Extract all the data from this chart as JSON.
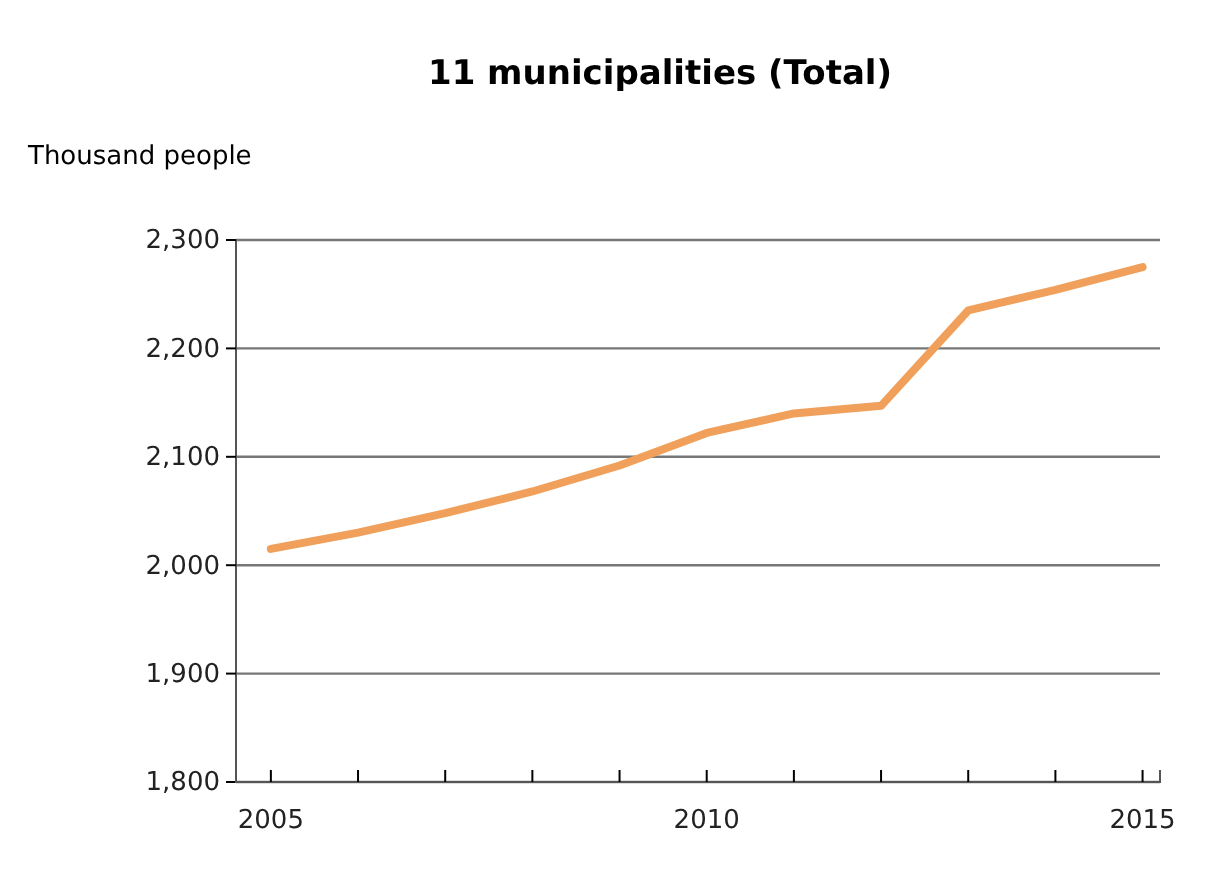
{
  "chart_data": {
    "type": "line",
    "title": "11 municipalities (Total)",
    "ylabel": "Thousand people",
    "x": [
      2005,
      2006,
      2007,
      2008,
      2009,
      2010,
      2011,
      2012,
      2013,
      2014,
      2015
    ],
    "series": [
      {
        "color": "#f0a05a",
        "values": [
          2015,
          2030,
          2048,
          2068,
          2092,
          2122,
          2140,
          2147,
          2235,
          2254,
          2275
        ]
      }
    ],
    "xlim": [
      2004.6,
      2015.2
    ],
    "ylim": [
      1800,
      2300
    ],
    "xticks": [
      2005,
      {
        "value": 2006,
        "label": null
      },
      {
        "value": 2007,
        "label": null
      },
      {
        "value": 2008,
        "label": null
      },
      {
        "value": 2009,
        "label": null
      },
      2010,
      {
        "value": 2011,
        "label": null
      },
      {
        "value": 2012,
        "label": null
      },
      {
        "value": 2013,
        "label": null
      },
      {
        "value": 2014,
        "label": null
      },
      2015
    ],
    "yticks": [
      {
        "value": 1800,
        "label": "1,800"
      },
      {
        "value": 1900,
        "label": "1,900"
      },
      {
        "value": 2000,
        "label": "2,000"
      },
      {
        "value": 2100,
        "label": "2,100"
      },
      {
        "value": 2200,
        "label": "2,200"
      },
      {
        "value": 2300,
        "label": "2,300"
      }
    ],
    "grid": "y",
    "marker": "none",
    "line_style": "solid"
  }
}
